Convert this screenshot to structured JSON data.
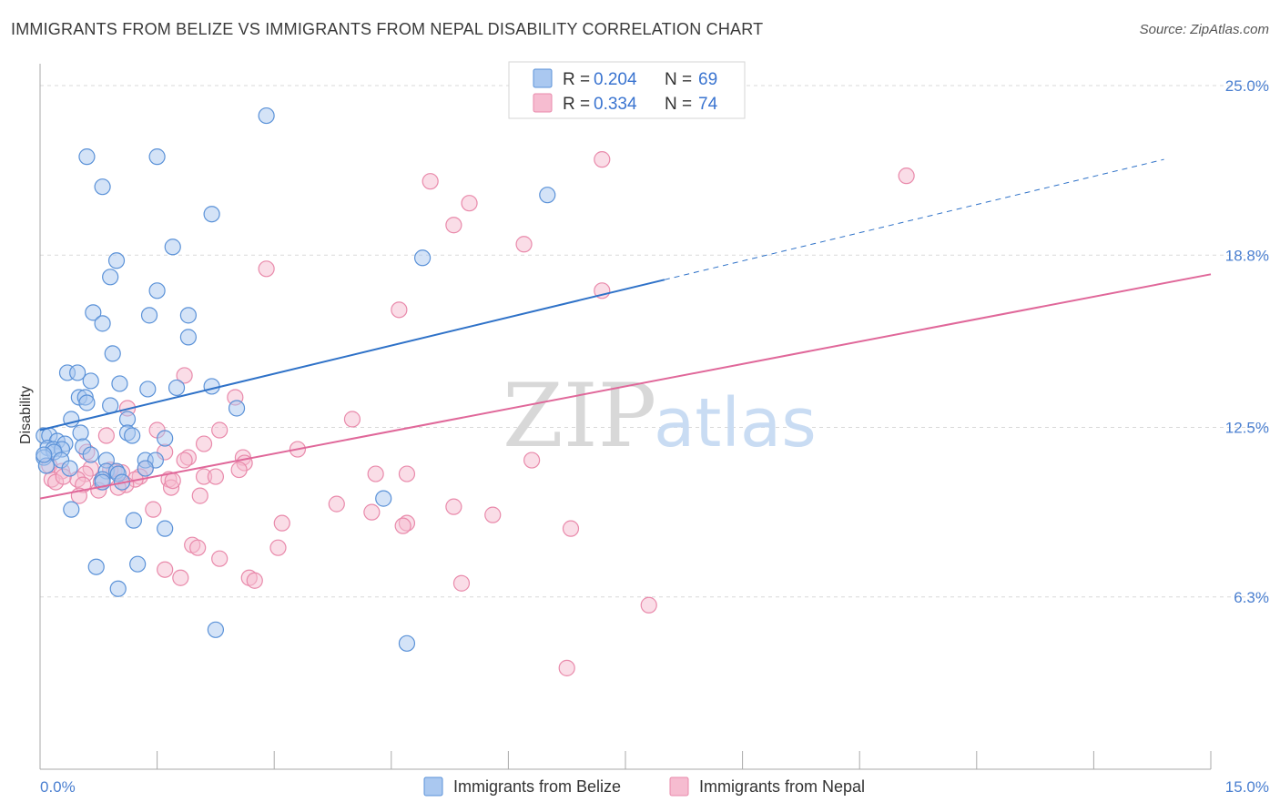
{
  "title": "IMMIGRANTS FROM BELIZE VS IMMIGRANTS FROM NEPAL DISABILITY CORRELATION CHART",
  "source_label": "Source:",
  "source_value": "ZipAtlas.com",
  "watermark": {
    "zip": "ZIP",
    "atlas": "atlas"
  },
  "colors": {
    "belize_fill": "#aac8f0",
    "belize_stroke": "#5b92d8",
    "belize_line": "#2f72c8",
    "nepal_fill": "#f6bcd0",
    "nepal_stroke": "#e98aab",
    "nepal_line": "#e0689a",
    "grid": "#d9d9d9",
    "tick_text": "#4a7fd0"
  },
  "legend": {
    "r_label": "R =",
    "n_label": "N =",
    "belize": {
      "r": "0.204",
      "n": "69"
    },
    "nepal": {
      "r": "0.334",
      "n": "74"
    }
  },
  "bottom_legend": {
    "belize": "Immigrants from Belize",
    "nepal": "Immigrants from Nepal"
  },
  "chart_data": {
    "type": "scatter",
    "title": "IMMIGRANTS FROM BELIZE VS IMMIGRANTS FROM NEPAL DISABILITY CORRELATION CHART",
    "xlabel": "",
    "ylabel": "Disability",
    "xlim": [
      0,
      15
    ],
    "ylim": [
      0,
      25.8
    ],
    "x_tick_labels": [
      "0.0%",
      "15.0%"
    ],
    "y_ticks": [
      6.3,
      12.5,
      18.8,
      25.0
    ],
    "y_tick_labels": [
      "6.3%",
      "12.5%",
      "18.8%",
      "25.0%"
    ],
    "grid": "horizontal dashed",
    "legend_placement": "top-center",
    "series": [
      {
        "name": "Immigrants from Belize",
        "r": 0.204,
        "n": 69,
        "trend": {
          "x0": 0,
          "y0": 12.4,
          "x1": 8.0,
          "y1": 17.9,
          "dashed_to_x": 14.4,
          "dashed_to_y": 22.3
        },
        "points": [
          [
            2.9,
            23.9
          ],
          [
            0.6,
            22.4
          ],
          [
            1.5,
            22.4
          ],
          [
            0.8,
            21.3
          ],
          [
            6.5,
            21.0
          ],
          [
            2.2,
            20.3
          ],
          [
            1.7,
            19.1
          ],
          [
            4.9,
            18.7
          ],
          [
            0.98,
            18.6
          ],
          [
            0.9,
            18.0
          ],
          [
            1.5,
            17.5
          ],
          [
            0.68,
            16.7
          ],
          [
            1.4,
            16.6
          ],
          [
            1.9,
            16.6
          ],
          [
            0.8,
            16.3
          ],
          [
            1.9,
            15.8
          ],
          [
            0.93,
            15.2
          ],
          [
            0.35,
            14.5
          ],
          [
            0.48,
            14.5
          ],
          [
            0.65,
            14.2
          ],
          [
            1.02,
            14.1
          ],
          [
            1.38,
            13.9
          ],
          [
            1.75,
            13.95
          ],
          [
            2.2,
            14.0
          ],
          [
            0.5,
            13.6
          ],
          [
            0.58,
            13.6
          ],
          [
            0.6,
            13.4
          ],
          [
            0.9,
            13.3
          ],
          [
            2.52,
            13.2
          ],
          [
            0.4,
            12.8
          ],
          [
            1.12,
            12.8
          ],
          [
            0.05,
            12.2
          ],
          [
            0.12,
            12.2
          ],
          [
            0.52,
            12.3
          ],
          [
            1.12,
            12.3
          ],
          [
            1.18,
            12.2
          ],
          [
            1.6,
            12.1
          ],
          [
            0.22,
            12.0
          ],
          [
            0.32,
            11.9
          ],
          [
            0.55,
            11.8
          ],
          [
            0.1,
            11.75
          ],
          [
            0.17,
            11.7
          ],
          [
            0.28,
            11.7
          ],
          [
            0.18,
            11.6
          ],
          [
            0.65,
            11.5
          ],
          [
            0.05,
            11.4
          ],
          [
            0.27,
            11.3
          ],
          [
            0.85,
            11.3
          ],
          [
            1.35,
            11.3
          ],
          [
            1.48,
            11.3
          ],
          [
            0.08,
            11.1
          ],
          [
            0.38,
            11.0
          ],
          [
            1.35,
            11.0
          ],
          [
            0.85,
            10.9
          ],
          [
            0.98,
            10.9
          ],
          [
            1.0,
            10.8
          ],
          [
            0.8,
            10.6
          ],
          [
            0.8,
            10.5
          ],
          [
            1.05,
            10.5
          ],
          [
            4.4,
            9.9
          ],
          [
            0.4,
            9.5
          ],
          [
            1.2,
            9.1
          ],
          [
            1.6,
            8.8
          ],
          [
            0.72,
            7.4
          ],
          [
            1.25,
            7.5
          ],
          [
            1.0,
            6.6
          ],
          [
            2.25,
            5.1
          ],
          [
            4.7,
            4.6
          ],
          [
            0.05,
            11.5
          ]
        ]
      },
      {
        "name": "Immigrants from Nepal",
        "r": 0.334,
        "n": 74,
        "trend": {
          "x0": 0,
          "y0": 9.9,
          "x1": 15.0,
          "y1": 18.1
        },
        "points": [
          [
            7.2,
            22.3
          ],
          [
            11.1,
            21.7
          ],
          [
            5.0,
            21.5
          ],
          [
            5.5,
            20.7
          ],
          [
            5.3,
            19.9
          ],
          [
            6.2,
            19.2
          ],
          [
            2.9,
            18.3
          ],
          [
            7.2,
            17.5
          ],
          [
            4.6,
            16.8
          ],
          [
            1.85,
            14.4
          ],
          [
            2.5,
            13.6
          ],
          [
            1.12,
            13.2
          ],
          [
            4.0,
            12.8
          ],
          [
            1.5,
            12.4
          ],
          [
            2.3,
            12.4
          ],
          [
            0.85,
            12.2
          ],
          [
            2.1,
            11.9
          ],
          [
            3.3,
            11.7
          ],
          [
            1.6,
            11.6
          ],
          [
            0.6,
            11.6
          ],
          [
            1.9,
            11.4
          ],
          [
            2.6,
            11.4
          ],
          [
            2.62,
            11.2
          ],
          [
            6.3,
            11.3
          ],
          [
            0.12,
            11.1
          ],
          [
            0.65,
            11.0
          ],
          [
            1.35,
            11.0
          ],
          [
            2.1,
            10.7
          ],
          [
            0.28,
            10.9
          ],
          [
            0.58,
            10.8
          ],
          [
            0.95,
            10.9
          ],
          [
            1.28,
            10.7
          ],
          [
            2.25,
            10.7
          ],
          [
            4.3,
            10.8
          ],
          [
            4.7,
            10.8
          ],
          [
            0.15,
            10.6
          ],
          [
            0.48,
            10.6
          ],
          [
            1.22,
            10.6
          ],
          [
            0.2,
            10.5
          ],
          [
            1.65,
            10.6
          ],
          [
            0.78,
            10.5
          ],
          [
            0.55,
            10.4
          ],
          [
            1.1,
            10.4
          ],
          [
            1.0,
            10.3
          ],
          [
            1.68,
            10.3
          ],
          [
            0.75,
            10.2
          ],
          [
            2.05,
            10.0
          ],
          [
            0.5,
            10.0
          ],
          [
            3.8,
            9.7
          ],
          [
            5.3,
            9.6
          ],
          [
            1.45,
            9.5
          ],
          [
            4.25,
            9.4
          ],
          [
            5.8,
            9.3
          ],
          [
            3.1,
            9.0
          ],
          [
            4.7,
            9.0
          ],
          [
            4.65,
            8.9
          ],
          [
            6.8,
            8.8
          ],
          [
            1.95,
            8.2
          ],
          [
            2.02,
            8.1
          ],
          [
            3.05,
            8.1
          ],
          [
            2.3,
            7.7
          ],
          [
            1.6,
            7.3
          ],
          [
            1.8,
            7.0
          ],
          [
            2.68,
            7.0
          ],
          [
            2.75,
            6.9
          ],
          [
            5.4,
            6.8
          ],
          [
            7.8,
            6.0
          ],
          [
            6.75,
            3.7
          ],
          [
            0.3,
            10.7
          ],
          [
            1.85,
            11.3
          ],
          [
            2.55,
            10.95
          ],
          [
            1.05,
            10.85
          ],
          [
            1.7,
            10.55
          ],
          [
            0.9,
            10.95
          ]
        ]
      }
    ]
  }
}
